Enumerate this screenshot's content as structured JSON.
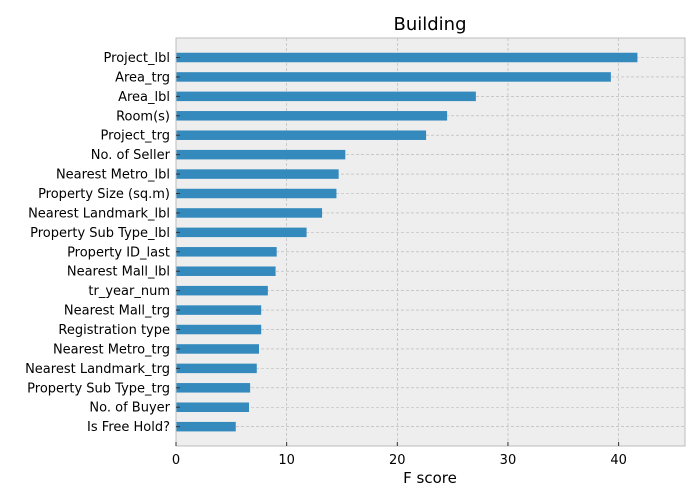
{
  "chart_data": {
    "type": "bar",
    "orientation": "horizontal",
    "title": "Building",
    "xlabel": "F score",
    "ylabel": "",
    "xlim": [
      0,
      46
    ],
    "xticks": [
      0,
      10,
      20,
      30,
      40
    ],
    "grid": true,
    "colors": {
      "bar": "#348abd",
      "plot_background": "#eeeeee",
      "grid": "#b2b2b2",
      "axes_edge": "#bcbcbc"
    },
    "categories": [
      "Project_lbl",
      "Area_trg",
      "Area_lbl",
      "Room(s)",
      "Project_trg",
      "No. of Seller",
      "Nearest Metro_lbl",
      "Property Size (sq.m)",
      "Nearest Landmark_lbl",
      "Property Sub Type_lbl",
      "Property ID_last",
      "Nearest Mall_lbl",
      "tr_year_num",
      "Nearest Mall_trg",
      "Registration type",
      "Nearest Metro_trg",
      "Nearest Landmark_trg",
      "Property Sub Type_trg",
      "No. of Buyer",
      "Is Free Hold?"
    ],
    "values": [
      41.7,
      39.3,
      27.1,
      24.5,
      22.6,
      15.3,
      14.7,
      14.5,
      13.2,
      11.8,
      9.1,
      9.0,
      8.3,
      7.7,
      7.7,
      7.5,
      7.3,
      6.7,
      6.6,
      5.4
    ]
  }
}
